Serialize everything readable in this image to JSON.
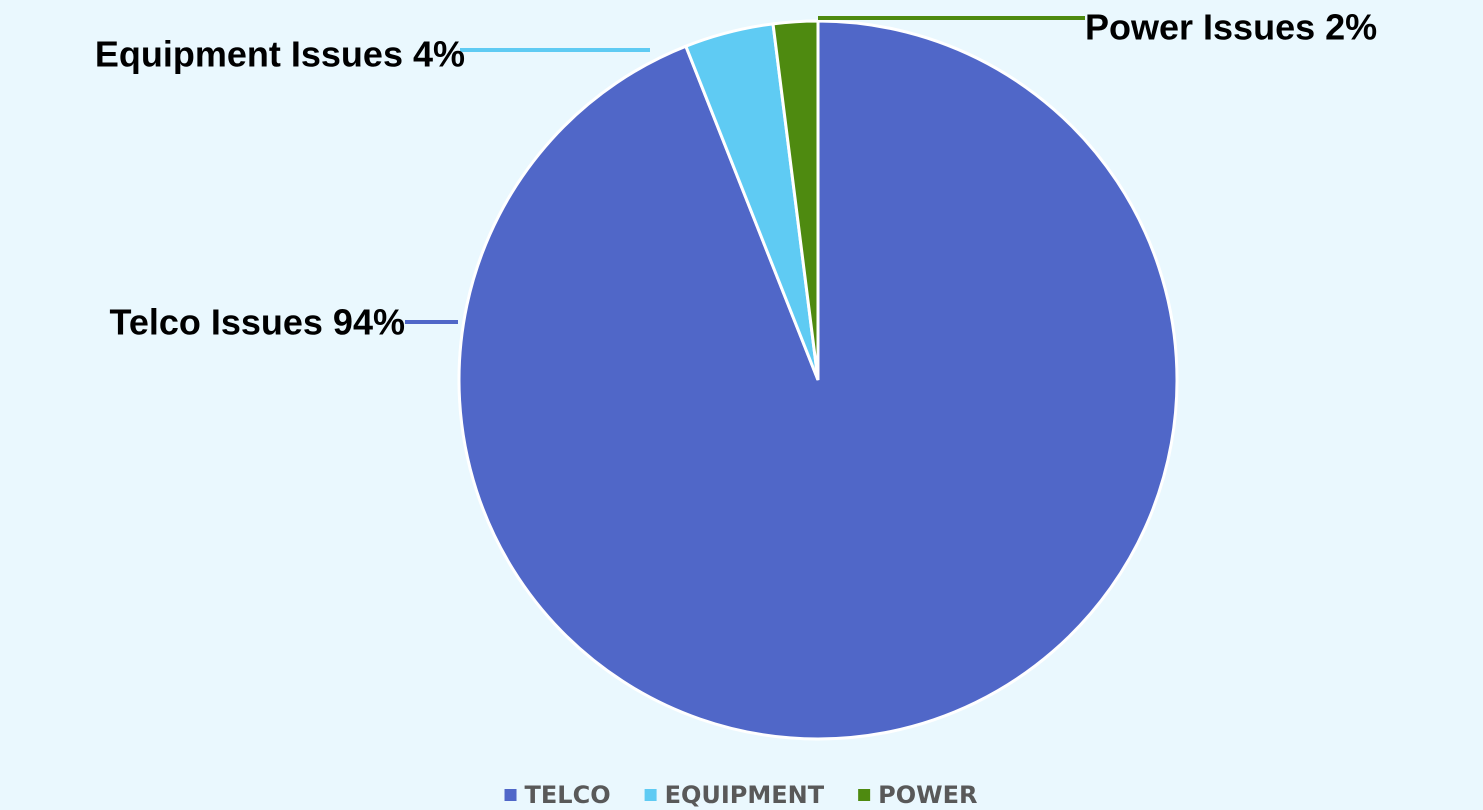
{
  "chart_data": {
    "type": "pie",
    "categories": [
      "TELCO",
      "EQUIPMENT",
      "POWER"
    ],
    "values": [
      94,
      4,
      2
    ],
    "value_labels": [
      "Telco Issues 94%",
      "Equipment Issues 4%",
      "Power Issues 2%"
    ],
    "colors": [
      "#5067c8",
      "#5fcbf3",
      "#4e8a10"
    ],
    "legend": "bottom"
  }
}
